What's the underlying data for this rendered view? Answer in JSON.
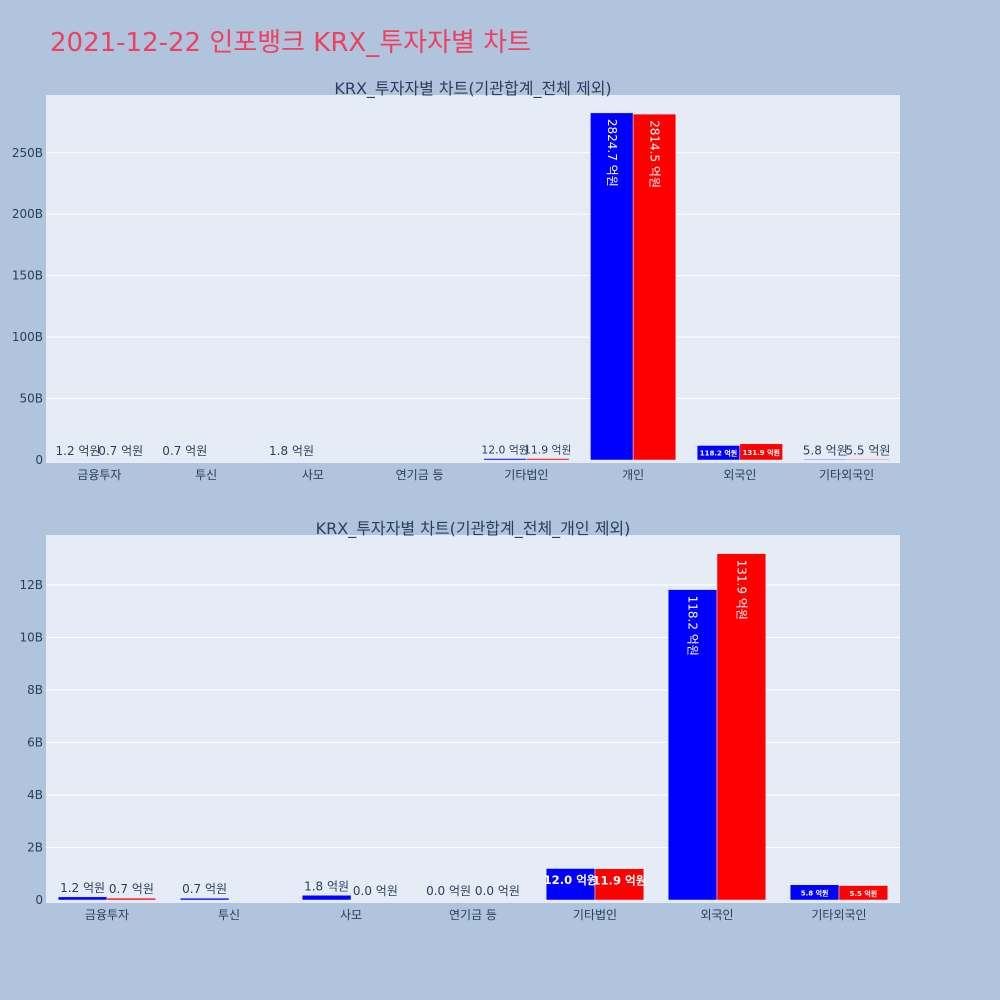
{
  "page": {
    "title": "2021-12-22 인포뱅크 KRX_투자자별 차트"
  },
  "colors": {
    "page_bg": "#b0c4de",
    "plot_bg": "#e5ecf6",
    "title": "#ef4060",
    "text": "#2a3f5f",
    "series_buy": "#0000ff",
    "series_sell": "#ff0000"
  },
  "chart_data": [
    {
      "type": "bar",
      "title": "KRX_투자자별 차트(기관합계_전체 제외)",
      "categories": [
        "금융투자",
        "투신",
        "사모",
        "연기금 등",
        "기타법인",
        "개인",
        "외국인",
        "기타외국인"
      ],
      "series": [
        {
          "color": "#0000ff",
          "values": [
            1.2,
            0.7,
            1.8,
            0,
            12.0,
            2824.7,
            118.2,
            5.8
          ],
          "labels": [
            "1.2 억원",
            "0.7 억원",
            "1.8 억원",
            "",
            "12.0 억원",
            "2824.7 억원",
            "118.2 억원",
            "5.8 억원"
          ]
        },
        {
          "color": "#ff0000",
          "values": [
            0.7,
            0,
            0,
            0,
            11.9,
            2814.5,
            131.9,
            5.5
          ],
          "labels": [
            "0.7 억원",
            "",
            "",
            "",
            "11.9 억원",
            "2814.5 억원",
            "131.9 억원",
            "5.5 억원"
          ]
        }
      ],
      "value_unit": "억원",
      "yticks": [
        0,
        500,
        1000,
        1500,
        2000,
        2500
      ],
      "ytick_labels": [
        "0",
        "50B",
        "100B",
        "150B",
        "200B",
        "250B"
      ],
      "ylim": [
        0,
        2970
      ],
      "grid": true
    },
    {
      "type": "bar",
      "title": "KRX_투자자별 차트(기관합계_전체_개인 제외)",
      "categories": [
        "금융투자",
        "투신",
        "사모",
        "연기금 등",
        "기타법인",
        "외국인",
        "기타외국인"
      ],
      "series": [
        {
          "color": "#0000ff",
          "values": [
            1.2,
            0.7,
            1.8,
            0.0,
            12.0,
            118.2,
            5.8
          ],
          "labels": [
            "1.2 억원",
            "0.7 억원",
            "1.8 억원",
            "0.0 억원",
            "12.0 억원",
            "118.2 억원",
            "5.8 억원"
          ]
        },
        {
          "color": "#ff0000",
          "values": [
            0.7,
            0,
            0.0,
            0.0,
            11.9,
            131.9,
            5.5
          ],
          "labels": [
            "0.7 억원",
            "",
            "0.0 억원",
            "0.0 억원",
            "11.9 억원",
            "131.9 억원",
            "5.5 억원"
          ]
        }
      ],
      "value_unit": "억원",
      "yticks": [
        0,
        20,
        40,
        60,
        80,
        100,
        120
      ],
      "ytick_labels": [
        "0",
        "2B",
        "4B",
        "6B",
        "8B",
        "10B",
        "12B"
      ],
      "ylim": [
        0,
        139
      ],
      "grid": true
    }
  ]
}
